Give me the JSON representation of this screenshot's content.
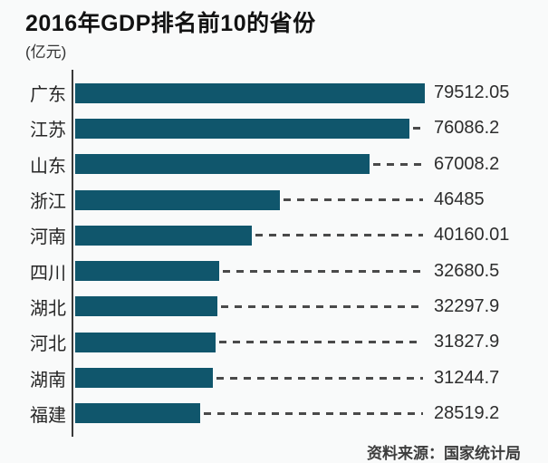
{
  "header": {
    "title": "2016年GDP排名前10的省份",
    "unit_label": "(亿元)"
  },
  "chart_data": {
    "type": "bar",
    "orientation": "horizontal",
    "title": "2016年GDP排名前10的省份",
    "unit": "亿元",
    "categories": [
      "广东",
      "江苏",
      "山东",
      "浙江",
      "河南",
      "四川",
      "湖北",
      "河北",
      "湖南",
      "福建"
    ],
    "values": [
      79512.05,
      76086.2,
      67008.2,
      46485,
      40160.01,
      32680.5,
      32297.9,
      31827.9,
      31244.7,
      28519.2
    ],
    "value_labels": [
      "79512.05",
      "76086.2",
      "67008.2",
      "46485",
      "40160.01",
      "32680.5",
      "32297.9",
      "31827.9",
      "31244.7",
      "28519.2"
    ],
    "xlim": [
      0,
      79512.05
    ],
    "bar_color": "#10566c",
    "leader_line_color": "#4a4a4a",
    "grid": false,
    "legend": false
  },
  "footer": {
    "source": "资料来源：国家统计局"
  }
}
